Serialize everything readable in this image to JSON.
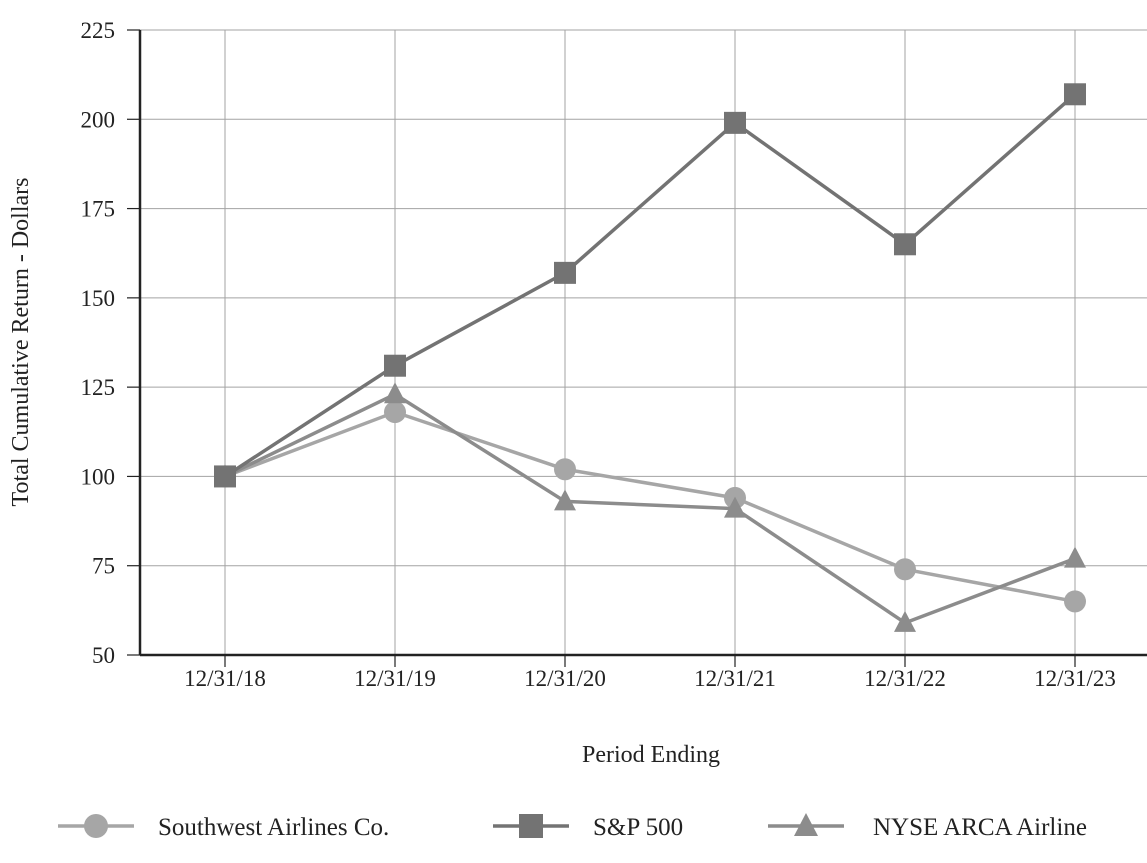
{
  "chart_data": {
    "type": "line",
    "xlabel": "Period Ending",
    "ylabel": "Total Cumulative Return - Dollars",
    "categories": [
      "12/31/18",
      "12/31/19",
      "12/31/20",
      "12/31/21",
      "12/31/22",
      "12/31/23"
    ],
    "ylim": [
      50,
      225
    ],
    "yticks": [
      50,
      75,
      100,
      125,
      150,
      175,
      200,
      225
    ],
    "grid": true,
    "legend_position": "bottom",
    "series": [
      {
        "name": "Southwest Airlines Co.",
        "marker": "circle",
        "color": "#a6a6a6",
        "values": [
          100,
          118,
          102,
          94,
          74,
          65
        ]
      },
      {
        "name": "S&P 500",
        "marker": "square",
        "color": "#737373",
        "values": [
          100,
          131,
          157,
          199,
          165,
          207
        ]
      },
      {
        "name": "NYSE ARCA Airline",
        "marker": "triangle",
        "color": "#8c8c8c",
        "values": [
          100,
          123,
          93,
          91,
          59,
          77
        ]
      }
    ]
  }
}
